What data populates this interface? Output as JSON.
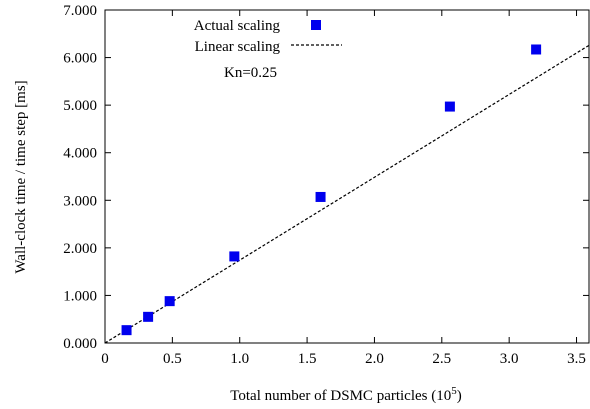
{
  "chart_data": {
    "type": "scatter",
    "xlabel_main": "Total number of DSMC particles (10",
    "xlabel_sup": "5",
    "xlabel_end": ")",
    "ylabel": "Wall-clock time / time step [ms]",
    "xlim": [
      0,
      3.6
    ],
    "ylim": [
      0,
      7
    ],
    "x_ticks": [
      "0",
      "0.5",
      "1.0",
      "1.5",
      "2.0",
      "2.5",
      "3.0",
      "3.5"
    ],
    "x_tick_values": [
      0,
      0.5,
      1.0,
      1.5,
      2.0,
      2.5,
      3.0,
      3.5
    ],
    "y_ticks": [
      "0.000",
      "1.000",
      "2.000",
      "3.000",
      "4.000",
      "5.000",
      "6.000",
      "7.000"
    ],
    "y_tick_values": [
      0,
      1,
      2,
      3,
      4,
      5,
      6,
      7
    ],
    "grid": false,
    "legend_position": "top-center",
    "annotation": "Kn=0.25",
    "series": [
      {
        "name": "Actual scaling",
        "kind": "markers",
        "marker": "square",
        "color": "#0000ee",
        "x": [
          0.16,
          0.32,
          0.48,
          0.96,
          1.6,
          2.56,
          3.2
        ],
        "y": [
          0.27,
          0.55,
          0.88,
          1.82,
          3.07,
          4.97,
          6.17
        ]
      },
      {
        "name": "Linear scaling",
        "kind": "line",
        "style": "dashed",
        "color": "#000000",
        "x": [
          0,
          3.6
        ],
        "y": [
          0,
          6.27
        ]
      }
    ]
  }
}
